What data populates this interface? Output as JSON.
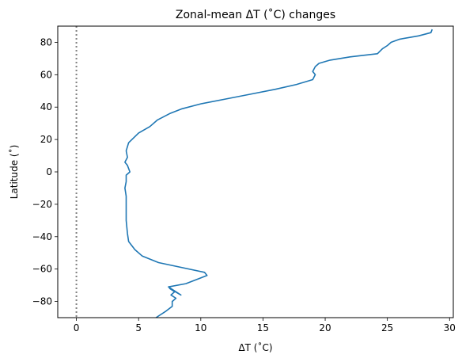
{
  "chart_data": {
    "type": "line",
    "title": "Zonal-mean ΔT (˚C) changes",
    "xlabel": "ΔT (˚C)",
    "ylabel": "Latitude (˚)",
    "xlim": [
      -1.5,
      30.3
    ],
    "ylim": [
      -90,
      90
    ],
    "xticks": [
      0,
      5,
      10,
      15,
      20,
      25,
      30
    ],
    "yticks": [
      -80,
      -60,
      -40,
      -20,
      0,
      20,
      40,
      60,
      80
    ],
    "grid": false,
    "reference_line": {
      "x": 0,
      "style": "dotted",
      "color": "#808080"
    },
    "series": [
      {
        "color": "#1f77b4",
        "x": [
          6.4,
          7.2,
          7.7,
          7.7,
          8.0,
          7.6,
          7.9,
          7.5,
          8.4,
          7.4,
          8.8,
          10.5,
          10.3,
          6.6,
          5.3,
          4.7,
          4.2,
          4.1,
          4.0,
          4.0,
          4.0,
          3.9,
          4.0,
          4.0,
          4.3,
          4.1,
          3.9,
          4.1,
          4.0,
          4.2,
          5.0,
          5.9,
          6.5,
          7.5,
          8.5,
          10.0,
          12.0,
          14.0,
          16.0,
          17.7,
          19.0,
          19.2,
          19.0,
          19.2,
          19.5,
          20.4,
          22.0,
          24.2,
          24.6,
          25.0,
          25.3,
          26.0,
          27.5,
          28.5,
          28.6
        ],
        "y": [
          -90,
          -86,
          -83,
          -80,
          -78,
          -76,
          -74,
          -72,
          -76,
          -71,
          -69,
          -64,
          -62,
          -56,
          -52,
          -48,
          -43,
          -38,
          -30,
          -22,
          -15,
          -10,
          -6,
          -2,
          0,
          4,
          6,
          9,
          13,
          18,
          24,
          28,
          32,
          36,
          39,
          42,
          45,
          48,
          51,
          54,
          57,
          60,
          62,
          65,
          67,
          69,
          71,
          73,
          76,
          78,
          80,
          82,
          84,
          86,
          88
        ]
      }
    ]
  }
}
